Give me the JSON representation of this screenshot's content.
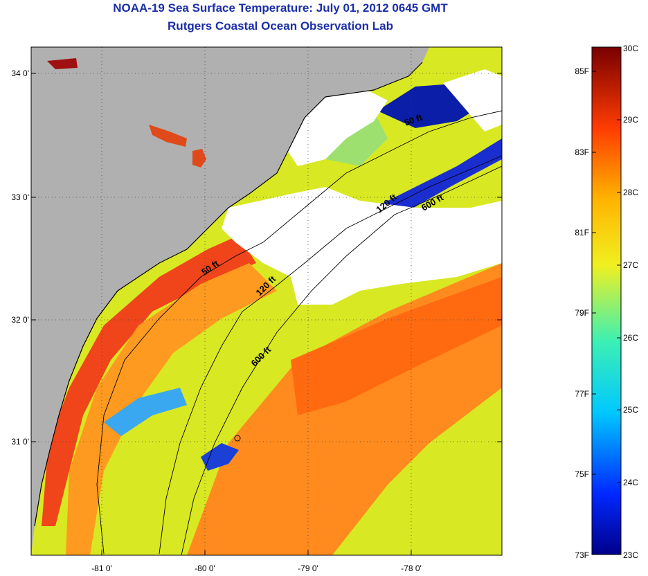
{
  "title": "NOAA-19 Sea Surface Temperature:  July 01, 2012 0645 GMT",
  "subtitle": "Rutgers Coastal Ocean Observation Lab",
  "map": {
    "lat_ticks": [
      "34 0'",
      "33 0'",
      "32 0'",
      "31 0'"
    ],
    "lon_ticks": [
      "-81 0'",
      "-80 0'",
      "-79 0'",
      "-78 0'"
    ],
    "colors": {
      "land": "#b0b0b0",
      "cloud": "#ffffff",
      "warm": "#ff7a1a",
      "mid": "#f5e21a",
      "cool": "#1a3dd6",
      "red": "#e0251a"
    },
    "contours": [
      {
        "label": "50 ft"
      },
      {
        "label": "120 ft"
      },
      {
        "label": "600 ft"
      },
      {
        "label": "50 ft"
      },
      {
        "label": "120 ft"
      },
      {
        "label": "600 ft"
      }
    ]
  },
  "colorbar": {
    "celsius": [
      "30C",
      "29C",
      "28C",
      "27C",
      "26C",
      "25C",
      "24C",
      "23C"
    ],
    "fahrenheit": [
      "85F",
      "83F",
      "81F",
      "79F",
      "77F",
      "75F",
      "73F"
    ]
  }
}
